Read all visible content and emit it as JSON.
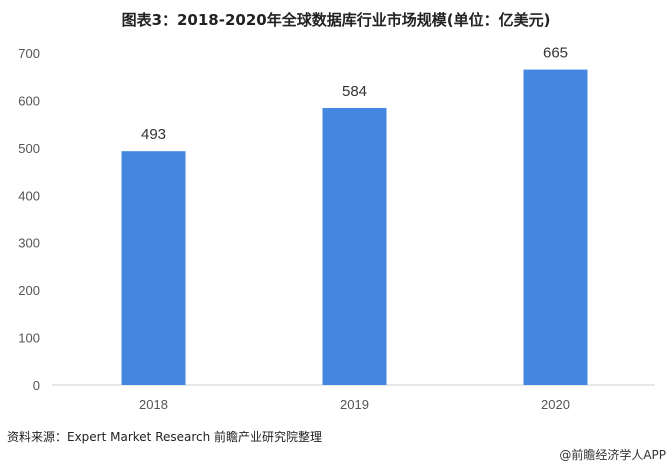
{
  "chart_data": {
    "type": "bar",
    "title": "图表3：2018-2020年全球数据库行业市场规模(单位：亿美元)",
    "categories": [
      "2018",
      "2019",
      "2020"
    ],
    "values": [
      493,
      584,
      665
    ],
    "ylim": [
      0,
      700
    ],
    "yticks": [
      0,
      100,
      200,
      300,
      400,
      500,
      600,
      700
    ],
    "xlabel": "",
    "ylabel": "",
    "grid": false,
    "bar_color": "#4387e0"
  },
  "source": "资料来源：Expert Market Research 前瞻产业研究院整理",
  "credit": "@前瞻经济学人APP"
}
